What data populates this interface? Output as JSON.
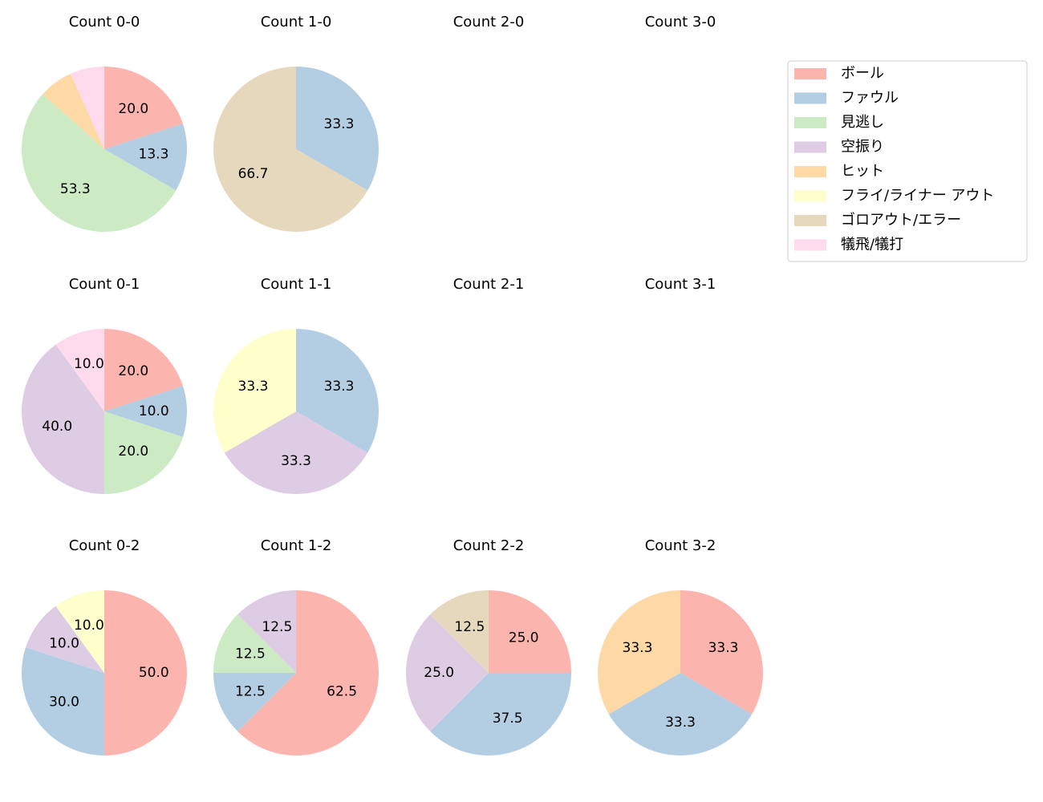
{
  "chart_data": [
    {
      "type": "pie",
      "title": "Count 0-0",
      "categories": [
        "ボール",
        "ファウル",
        "見逃し",
        "ヒット",
        "犠飛/犠打"
      ],
      "values": [
        20,
        13.3,
        53.3,
        6.7,
        6.7
      ],
      "value_labels": [
        "20.0",
        "13.3",
        "53.3",
        null,
        null
      ]
    },
    {
      "type": "pie",
      "title": "Count 1-0",
      "categories": [
        "ファウル",
        "ゴロアウト/エラー"
      ],
      "values": [
        33.3,
        66.7
      ],
      "value_labels": [
        "33.3",
        "66.7"
      ]
    },
    {
      "type": "pie",
      "title": "Count 2-0"
    },
    {
      "type": "pie",
      "title": "Count 3-0"
    },
    {
      "type": "pie",
      "title": "Count 0-1",
      "categories": [
        "ボール",
        "ファウル",
        "見逃し",
        "空振り",
        "犠飛/犠打"
      ],
      "values": [
        20,
        10,
        20,
        40,
        10
      ],
      "value_labels": [
        "20.0",
        "10.0",
        "20.0",
        "40.0",
        "10.0"
      ]
    },
    {
      "type": "pie",
      "title": "Count 1-1",
      "categories": [
        "ファウル",
        "空振り",
        "フライ/ライナー アウト"
      ],
      "values": [
        33.3,
        33.3,
        33.3
      ],
      "value_labels": [
        "33.3",
        "33.3",
        "33.3"
      ]
    },
    {
      "type": "pie",
      "title": "Count 2-1"
    },
    {
      "type": "pie",
      "title": "Count 3-1"
    },
    {
      "type": "pie",
      "title": "Count 0-2",
      "categories": [
        "ボール",
        "ファウル",
        "空振り",
        "フライ/ライナー アウト"
      ],
      "values": [
        50,
        30,
        10,
        10
      ],
      "value_labels": [
        "50.0",
        "30.0",
        "10.0",
        "10.0"
      ]
    },
    {
      "type": "pie",
      "title": "Count 1-2",
      "categories": [
        "ボール",
        "ファウル",
        "見逃し",
        "空振り"
      ],
      "values": [
        62.5,
        12.5,
        12.5,
        12.5
      ],
      "value_labels": [
        "62.5",
        "12.5",
        "12.5",
        "12.5"
      ]
    },
    {
      "type": "pie",
      "title": "Count 2-2",
      "categories": [
        "ボール",
        "ファウル",
        "空振り",
        "ゴロアウト/エラー"
      ],
      "values": [
        25,
        37.5,
        25,
        12.5
      ],
      "value_labels": [
        "25.0",
        "37.5",
        "25.0",
        "12.5"
      ]
    },
    {
      "type": "pie",
      "title": "Count 3-2",
      "categories": [
        "ボール",
        "ファウル",
        "ヒット"
      ],
      "values": [
        33.3,
        33.3,
        33.3
      ],
      "value_labels": [
        "33.3",
        "33.3",
        "33.3"
      ]
    }
  ],
  "legend": {
    "position": "upper right",
    "items": [
      {
        "name": "ボール",
        "color": "#fbb4ae"
      },
      {
        "name": "ファウル",
        "color": "#b3cde3"
      },
      {
        "name": "見逃し",
        "color": "#ccebc5"
      },
      {
        "name": "空振り",
        "color": "#decbe4"
      },
      {
        "name": "ヒット",
        "color": "#fed9a6"
      },
      {
        "name": "フライ/ライナー アウト",
        "color": "#ffffcc"
      },
      {
        "name": "ゴロアウト/エラー",
        "color": "#e5d8bd"
      },
      {
        "name": "犠飛/犠打",
        "color": "#fddaec"
      }
    ]
  }
}
